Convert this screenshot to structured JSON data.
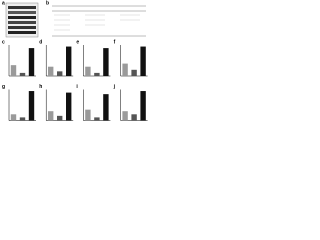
{
  "figure": {
    "blot_panel": "a",
    "table_panel": "b"
  },
  "chart_data": [
    {
      "type": "bar",
      "panel": "c",
      "values": [
        0.35,
        0.1,
        0.9
      ],
      "colors": [
        "#9a9a9a",
        "#555555",
        "#111111"
      ],
      "ylim": [
        0,
        1
      ]
    },
    {
      "type": "bar",
      "panel": "d",
      "values": [
        0.3,
        0.15,
        0.95
      ],
      "colors": [
        "#9a9a9a",
        "#555555",
        "#111111"
      ],
      "ylim": [
        0,
        1
      ]
    },
    {
      "type": "bar",
      "panel": "e",
      "values": [
        0.3,
        0.1,
        0.9
      ],
      "colors": [
        "#9a9a9a",
        "#555555",
        "#111111"
      ],
      "ylim": [
        0,
        1
      ]
    },
    {
      "type": "bar",
      "panel": "f",
      "values": [
        0.4,
        0.2,
        0.95
      ],
      "colors": [
        "#9a9a9a",
        "#555555",
        "#111111"
      ],
      "ylim": [
        0,
        1
      ]
    },
    {
      "type": "bar",
      "panel": "g",
      "values": [
        0.2,
        0.1,
        0.95
      ],
      "colors": [
        "#9a9a9a",
        "#555555",
        "#111111"
      ],
      "ylim": [
        0,
        1
      ]
    },
    {
      "type": "bar",
      "panel": "h",
      "values": [
        0.3,
        0.15,
        0.9
      ],
      "colors": [
        "#9a9a9a",
        "#555555",
        "#111111"
      ],
      "ylim": [
        0,
        1
      ]
    },
    {
      "type": "bar",
      "panel": "i",
      "values": [
        0.35,
        0.1,
        0.85
      ],
      "colors": [
        "#9a9a9a",
        "#555555",
        "#111111"
      ],
      "ylim": [
        0,
        1
      ]
    },
    {
      "type": "bar",
      "panel": "j",
      "values": [
        0.3,
        0.2,
        0.95
      ],
      "colors": [
        "#9a9a9a",
        "#555555",
        "#111111"
      ],
      "ylim": [
        0,
        1
      ]
    }
  ]
}
